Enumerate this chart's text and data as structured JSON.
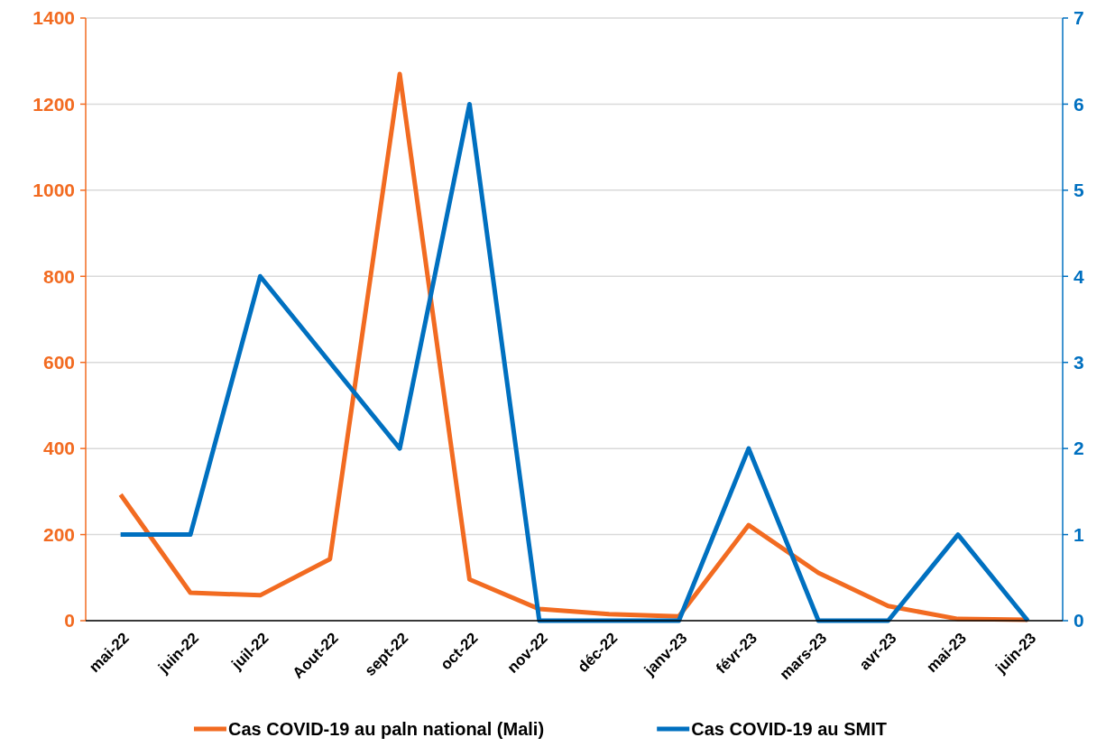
{
  "chart_data": {
    "type": "line",
    "categories": [
      "mai-22",
      "juin-22",
      "juil-22",
      "Aout-22",
      "sept-22",
      "oct-22",
      "nov-22",
      "déc-22",
      "janv-23",
      "févr-23",
      "mars-23",
      "avr-23",
      "mai-23",
      "juin-23"
    ],
    "series": [
      {
        "name": "Cas COVID-19 au paln national (Mali)",
        "color": "#f26b21",
        "values": [
          293,
          65,
          59,
          143,
          1270,
          96,
          27,
          15,
          10,
          222,
          111,
          34,
          4,
          2
        ]
      },
      {
        "name": "Cas COVID-19 au SMIT",
        "color": "#0070c0",
        "axis": "y2",
        "values": [
          1,
          1,
          4,
          3,
          2,
          6,
          0,
          0,
          0,
          2,
          0,
          0,
          1,
          0
        ]
      }
    ],
    "ylim": [
      0,
      1400
    ],
    "yticks": [
      0,
      200,
      400,
      600,
      800,
      1000,
      1200,
      1400
    ],
    "y2lim": [
      0,
      7
    ],
    "y2ticks": [
      0,
      1,
      2,
      3,
      4,
      5,
      6,
      7
    ],
    "grid": "y",
    "legend": "bottom",
    "marker": "none",
    "line_style": "solid"
  }
}
